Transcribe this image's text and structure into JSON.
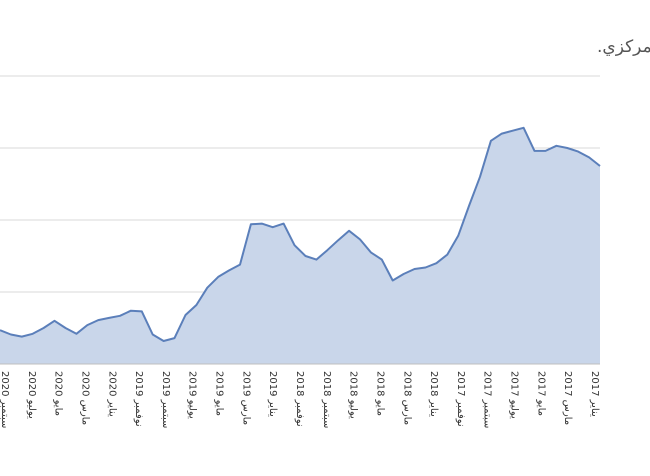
{
  "chart_data": {
    "type": "area",
    "title": "معدل التضخم السنوي - المصدر: بيانات البنك المركزي.",
    "xlabel": "",
    "ylabel": "",
    "y_tick_labels_visible": false,
    "x_axis_direction": "right-to-left",
    "ylim": [
      0,
      4
    ],
    "gridlines": [
      1,
      2,
      3,
      4
    ],
    "grid": true,
    "legend": "none",
    "fill_color": "#c9d6ea",
    "line_color": "#5b7fba",
    "x_tick_labels": [
      "يناير 2017",
      "مارس 2017",
      "مايو 2017",
      "يوليو 2017",
      "سبتمبر 2017",
      "نوفمبر 2017",
      "يناير 2018",
      "مارس 2018",
      "مايو 2018",
      "يوليو 2018",
      "سبتمبر 2018",
      "نوفمبر 2018",
      "يناير 2019",
      "مارس 2019",
      "مايو 2019",
      "يوليو 2019",
      "سبتمبر 2019",
      "نوفمبر 2019",
      "يناير 2020",
      "مارس 2020",
      "مايو 2020",
      "يوليو 2020",
      "سبتمبر 2020"
    ],
    "values": [
      2.75,
      2.87,
      2.95,
      3.0,
      3.03,
      2.96,
      2.96,
      3.28,
      3.24,
      3.2,
      3.1,
      2.6,
      2.2,
      1.78,
      1.52,
      1.4,
      1.34,
      1.32,
      1.25,
      1.16,
      1.45,
      1.55,
      1.73,
      1.85,
      1.72,
      1.58,
      1.45,
      1.5,
      1.65,
      1.95,
      1.9,
      1.95,
      1.94,
      1.38,
      1.3,
      1.21,
      1.06,
      0.82,
      0.68,
      0.36,
      0.32,
      0.41,
      0.73,
      0.74,
      0.67,
      0.64,
      0.61,
      0.54,
      0.42,
      0.5,
      0.6,
      0.5,
      0.42,
      0.38,
      0.41,
      0.47
    ]
  }
}
